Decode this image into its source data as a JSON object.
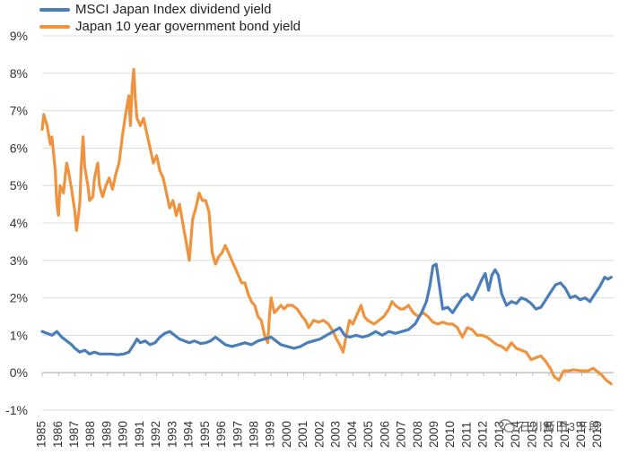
{
  "chart_data": {
    "type": "line",
    "title": "",
    "xlabel": "",
    "ylabel": "",
    "ylim": [
      -1,
      9
    ],
    "xlim": [
      1985,
      2019.8
    ],
    "yticks": [
      "-1%",
      "0%",
      "1%",
      "2%",
      "3%",
      "4%",
      "5%",
      "6%",
      "7%",
      "8%",
      "9%"
    ],
    "ytick_values": [
      -1,
      0,
      1,
      2,
      3,
      4,
      5,
      6,
      7,
      8,
      9
    ],
    "xticks": [
      "1985",
      "1986",
      "1987",
      "1988",
      "1989",
      "1990",
      "1991",
      "1992",
      "1993",
      "1994",
      "1995",
      "1996",
      "1997",
      "1998",
      "1999",
      "2000",
      "2001",
      "2002",
      "2003",
      "2004",
      "2005",
      "2006",
      "2007",
      "2008",
      "2009",
      "2010",
      "2011",
      "2012",
      "2013",
      "2014",
      "2015",
      "2016",
      "2017",
      "2018",
      "2019"
    ],
    "legend_position": "top-left",
    "series": [
      {
        "name": "MSCI Japan Index dividend yield",
        "color": "#4a7ebb",
        "points": [
          [
            1985.0,
            1.1
          ],
          [
            1985.3,
            1.05
          ],
          [
            1985.6,
            1.0
          ],
          [
            1985.9,
            1.1
          ],
          [
            1986.2,
            0.95
          ],
          [
            1986.5,
            0.85
          ],
          [
            1986.8,
            0.75
          ],
          [
            1987.0,
            0.65
          ],
          [
            1987.3,
            0.55
          ],
          [
            1987.6,
            0.6
          ],
          [
            1987.9,
            0.5
          ],
          [
            1988.2,
            0.55
          ],
          [
            1988.5,
            0.5
          ],
          [
            1988.8,
            0.5
          ],
          [
            1989.2,
            0.5
          ],
          [
            1989.6,
            0.48
          ],
          [
            1990.0,
            0.5
          ],
          [
            1990.3,
            0.55
          ],
          [
            1990.6,
            0.75
          ],
          [
            1990.8,
            0.9
          ],
          [
            1991.0,
            0.8
          ],
          [
            1991.3,
            0.85
          ],
          [
            1991.6,
            0.75
          ],
          [
            1991.9,
            0.8
          ],
          [
            1992.2,
            0.95
          ],
          [
            1992.5,
            1.05
          ],
          [
            1992.8,
            1.1
          ],
          [
            1993.1,
            1.0
          ],
          [
            1993.4,
            0.9
          ],
          [
            1993.7,
            0.85
          ],
          [
            1994.0,
            0.8
          ],
          [
            1994.3,
            0.85
          ],
          [
            1994.7,
            0.78
          ],
          [
            1995.0,
            0.8
          ],
          [
            1995.3,
            0.85
          ],
          [
            1995.6,
            0.95
          ],
          [
            1995.9,
            0.85
          ],
          [
            1996.2,
            0.75
          ],
          [
            1996.6,
            0.7
          ],
          [
            1997.0,
            0.75
          ],
          [
            1997.4,
            0.8
          ],
          [
            1997.8,
            0.75
          ],
          [
            1998.2,
            0.85
          ],
          [
            1998.6,
            0.9
          ],
          [
            1999.0,
            0.95
          ],
          [
            1999.3,
            0.85
          ],
          [
            1999.6,
            0.75
          ],
          [
            2000.0,
            0.7
          ],
          [
            2000.4,
            0.65
          ],
          [
            2000.8,
            0.7
          ],
          [
            2001.2,
            0.8
          ],
          [
            2001.6,
            0.85
          ],
          [
            2002.0,
            0.9
          ],
          [
            2002.4,
            1.0
          ],
          [
            2002.8,
            1.1
          ],
          [
            2003.2,
            1.2
          ],
          [
            2003.5,
            1.0
          ],
          [
            2003.8,
            0.95
          ],
          [
            2004.2,
            1.0
          ],
          [
            2004.6,
            0.95
          ],
          [
            2005.0,
            1.0
          ],
          [
            2005.4,
            1.1
          ],
          [
            2005.8,
            1.0
          ],
          [
            2006.2,
            1.1
          ],
          [
            2006.6,
            1.05
          ],
          [
            2007.0,
            1.1
          ],
          [
            2007.4,
            1.15
          ],
          [
            2007.8,
            1.3
          ],
          [
            2008.2,
            1.6
          ],
          [
            2008.5,
            1.9
          ],
          [
            2008.7,
            2.3
          ],
          [
            2008.9,
            2.85
          ],
          [
            2009.1,
            2.9
          ],
          [
            2009.3,
            2.3
          ],
          [
            2009.5,
            1.7
          ],
          [
            2009.8,
            1.75
          ],
          [
            2010.1,
            1.6
          ],
          [
            2010.4,
            1.8
          ],
          [
            2010.7,
            2.0
          ],
          [
            2011.0,
            2.1
          ],
          [
            2011.3,
            1.95
          ],
          [
            2011.6,
            2.2
          ],
          [
            2011.9,
            2.5
          ],
          [
            2012.1,
            2.65
          ],
          [
            2012.3,
            2.2
          ],
          [
            2012.5,
            2.6
          ],
          [
            2012.7,
            2.75
          ],
          [
            2012.9,
            2.6
          ],
          [
            2013.1,
            2.1
          ],
          [
            2013.4,
            1.8
          ],
          [
            2013.7,
            1.9
          ],
          [
            2014.0,
            1.85
          ],
          [
            2014.3,
            2.0
          ],
          [
            2014.6,
            1.95
          ],
          [
            2014.9,
            1.85
          ],
          [
            2015.2,
            1.7
          ],
          [
            2015.5,
            1.75
          ],
          [
            2015.8,
            1.95
          ],
          [
            2016.1,
            2.15
          ],
          [
            2016.4,
            2.35
          ],
          [
            2016.7,
            2.4
          ],
          [
            2017.0,
            2.25
          ],
          [
            2017.3,
            2.0
          ],
          [
            2017.6,
            2.05
          ],
          [
            2017.9,
            1.95
          ],
          [
            2018.2,
            2.0
          ],
          [
            2018.5,
            1.9
          ],
          [
            2018.8,
            2.1
          ],
          [
            2019.1,
            2.3
          ],
          [
            2019.4,
            2.55
          ],
          [
            2019.6,
            2.5
          ],
          [
            2019.8,
            2.55
          ]
        ]
      },
      {
        "name": "Japan 10 year government bond yield",
        "color": "#f0933e",
        "points": [
          [
            1985.0,
            6.5
          ],
          [
            1985.1,
            6.9
          ],
          [
            1985.3,
            6.6
          ],
          [
            1985.5,
            6.1
          ],
          [
            1985.6,
            6.3
          ],
          [
            1985.8,
            5.4
          ],
          [
            1985.9,
            4.5
          ],
          [
            1986.0,
            4.2
          ],
          [
            1986.1,
            5.0
          ],
          [
            1986.3,
            4.8
          ],
          [
            1986.5,
            5.6
          ],
          [
            1986.6,
            5.4
          ],
          [
            1986.8,
            4.9
          ],
          [
            1987.0,
            4.3
          ],
          [
            1987.1,
            3.8
          ],
          [
            1987.3,
            4.5
          ],
          [
            1987.4,
            5.6
          ],
          [
            1987.5,
            6.3
          ],
          [
            1987.6,
            5.5
          ],
          [
            1987.8,
            5.0
          ],
          [
            1987.9,
            4.6
          ],
          [
            1988.1,
            4.7
          ],
          [
            1988.2,
            5.2
          ],
          [
            1988.4,
            5.6
          ],
          [
            1988.5,
            5.0
          ],
          [
            1988.7,
            4.7
          ],
          [
            1988.9,
            5.0
          ],
          [
            1989.1,
            5.2
          ],
          [
            1989.3,
            4.9
          ],
          [
            1989.5,
            5.3
          ],
          [
            1989.7,
            5.6
          ],
          [
            1989.9,
            6.3
          ],
          [
            1990.1,
            6.9
          ],
          [
            1990.3,
            7.4
          ],
          [
            1990.4,
            6.6
          ],
          [
            1990.5,
            7.6
          ],
          [
            1990.6,
            8.1
          ],
          [
            1990.7,
            7.3
          ],
          [
            1990.8,
            6.8
          ],
          [
            1991.0,
            6.6
          ],
          [
            1991.2,
            6.8
          ],
          [
            1991.4,
            6.4
          ],
          [
            1991.6,
            6.0
          ],
          [
            1991.8,
            5.6
          ],
          [
            1992.0,
            5.8
          ],
          [
            1992.2,
            5.4
          ],
          [
            1992.4,
            5.2
          ],
          [
            1992.6,
            4.8
          ],
          [
            1992.8,
            4.4
          ],
          [
            1993.0,
            4.6
          ],
          [
            1993.2,
            4.2
          ],
          [
            1993.4,
            4.5
          ],
          [
            1993.6,
            4.0
          ],
          [
            1993.8,
            3.5
          ],
          [
            1994.0,
            3.0
          ],
          [
            1994.2,
            4.1
          ],
          [
            1994.4,
            4.4
          ],
          [
            1994.6,
            4.8
          ],
          [
            1994.8,
            4.6
          ],
          [
            1995.0,
            4.6
          ],
          [
            1995.2,
            4.3
          ],
          [
            1995.4,
            3.2
          ],
          [
            1995.6,
            2.9
          ],
          [
            1995.8,
            3.1
          ],
          [
            1996.0,
            3.2
          ],
          [
            1996.2,
            3.4
          ],
          [
            1996.4,
            3.2
          ],
          [
            1996.6,
            3.0
          ],
          [
            1996.8,
            2.8
          ],
          [
            1997.0,
            2.6
          ],
          [
            1997.2,
            2.4
          ],
          [
            1997.4,
            2.4
          ],
          [
            1997.6,
            2.1
          ],
          [
            1997.8,
            1.9
          ],
          [
            1998.0,
            1.8
          ],
          [
            1998.2,
            1.5
          ],
          [
            1998.4,
            1.4
          ],
          [
            1998.6,
            1.0
          ],
          [
            1998.8,
            0.8
          ],
          [
            1998.9,
            1.5
          ],
          [
            1999.0,
            2.0
          ],
          [
            1999.2,
            1.6
          ],
          [
            1999.4,
            1.7
          ],
          [
            1999.6,
            1.8
          ],
          [
            1999.8,
            1.7
          ],
          [
            2000.0,
            1.8
          ],
          [
            2000.3,
            1.8
          ],
          [
            2000.6,
            1.7
          ],
          [
            2000.9,
            1.5
          ],
          [
            2001.1,
            1.4
          ],
          [
            2001.3,
            1.2
          ],
          [
            2001.6,
            1.4
          ],
          [
            2001.9,
            1.35
          ],
          [
            2002.2,
            1.4
          ],
          [
            2002.5,
            1.3
          ],
          [
            2002.8,
            1.1
          ],
          [
            2003.0,
            0.9
          ],
          [
            2003.2,
            0.75
          ],
          [
            2003.4,
            0.55
          ],
          [
            2003.6,
            1.0
          ],
          [
            2003.8,
            1.4
          ],
          [
            2004.0,
            1.3
          ],
          [
            2004.3,
            1.6
          ],
          [
            2004.5,
            1.8
          ],
          [
            2004.7,
            1.5
          ],
          [
            2004.9,
            1.4
          ],
          [
            2005.1,
            1.35
          ],
          [
            2005.3,
            1.3
          ],
          [
            2005.6,
            1.4
          ],
          [
            2005.9,
            1.5
          ],
          [
            2006.2,
            1.7
          ],
          [
            2006.4,
            1.9
          ],
          [
            2006.6,
            1.8
          ],
          [
            2006.9,
            1.7
          ],
          [
            2007.1,
            1.7
          ],
          [
            2007.4,
            1.8
          ],
          [
            2007.7,
            1.6
          ],
          [
            2008.0,
            1.5
          ],
          [
            2008.3,
            1.6
          ],
          [
            2008.6,
            1.5
          ],
          [
            2008.9,
            1.35
          ],
          [
            2009.2,
            1.3
          ],
          [
            2009.5,
            1.35
          ],
          [
            2009.8,
            1.3
          ],
          [
            2010.1,
            1.3
          ],
          [
            2010.4,
            1.2
          ],
          [
            2010.7,
            0.95
          ],
          [
            2011.0,
            1.2
          ],
          [
            2011.3,
            1.15
          ],
          [
            2011.6,
            1.0
          ],
          [
            2011.9,
            1.0
          ],
          [
            2012.2,
            0.95
          ],
          [
            2012.5,
            0.85
          ],
          [
            2012.8,
            0.75
          ],
          [
            2013.1,
            0.7
          ],
          [
            2013.4,
            0.6
          ],
          [
            2013.7,
            0.8
          ],
          [
            2014.0,
            0.65
          ],
          [
            2014.3,
            0.6
          ],
          [
            2014.6,
            0.55
          ],
          [
            2014.9,
            0.35
          ],
          [
            2015.2,
            0.4
          ],
          [
            2015.5,
            0.45
          ],
          [
            2015.8,
            0.3
          ],
          [
            2016.1,
            0.1
          ],
          [
            2016.3,
            -0.1
          ],
          [
            2016.6,
            -0.2
          ],
          [
            2016.9,
            0.05
          ],
          [
            2017.2,
            0.05
          ],
          [
            2017.5,
            0.08
          ],
          [
            2017.8,
            0.06
          ],
          [
            2018.1,
            0.05
          ],
          [
            2018.4,
            0.05
          ],
          [
            2018.7,
            0.12
          ],
          [
            2018.9,
            0.05
          ],
          [
            2019.2,
            -0.05
          ],
          [
            2019.5,
            -0.2
          ],
          [
            2019.8,
            -0.3
          ]
        ]
      }
    ]
  },
  "watermark": {
    "text": "石川新田3下段",
    "icon": "wechat-icon"
  }
}
